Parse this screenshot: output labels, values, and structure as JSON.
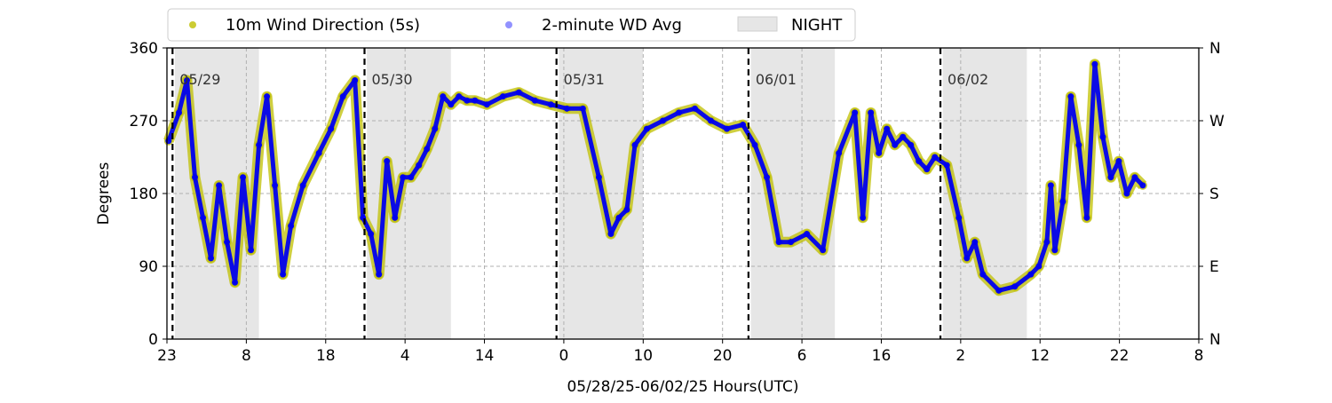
{
  "chart_data": {
    "type": "scatter",
    "xlabel": "05/28/25-06/02/25  Hours(UTC)",
    "ylabel": "Degrees",
    "ylim": [
      0,
      360
    ],
    "y_ticks": [
      0,
      90,
      180,
      270,
      360
    ],
    "y2_ticks": [
      "N",
      "E",
      "S",
      "W",
      "N"
    ],
    "xlim": [
      0,
      129
    ],
    "x_tick_labels": [
      "23",
      "8",
      "18",
      "4",
      "14",
      "0",
      "10",
      "20",
      "6",
      "16",
      "2",
      "12",
      "22",
      "8"
    ],
    "grid": true,
    "legend_position": "top-left",
    "colors": {
      "wind_5s": "#bfbf00",
      "wd_avg": "#0000ee",
      "night": "#e6e6e6",
      "day_line": "#000000",
      "grid": "#b0b0b0"
    },
    "legend": [
      {
        "label": "10m Wind Direction (5s)",
        "marker": "dot",
        "color": "#bfbf00"
      },
      {
        "label": "2-minute WD Avg",
        "marker": "dot",
        "color": "#7777ff"
      },
      {
        "label": "NIGHT",
        "marker": "box",
        "color": "#e6e6e6"
      }
    ],
    "day_boundaries": [
      {
        "x": 0.7,
        "label": "05/29"
      },
      {
        "x": 24.7,
        "label": "05/30"
      },
      {
        "x": 48.7,
        "label": "05/31"
      },
      {
        "x": 72.7,
        "label": "06/01"
      },
      {
        "x": 96.7,
        "label": "06/02"
      }
    ],
    "night_periods": [
      [
        1,
        11.5
      ],
      [
        25,
        35.5
      ],
      [
        49,
        59.5
      ],
      [
        73,
        83.5
      ],
      [
        97,
        107.5
      ]
    ],
    "series": [
      {
        "name": "10m Wind Direction (5s)",
        "x": [
          0.2,
          1.5,
          2.5,
          3.5,
          4.5,
          5.5,
          6.5,
          7.5,
          8.5,
          9.5,
          10.5,
          11.5,
          12.5,
          13.5,
          14.5,
          15.5,
          17,
          19,
          20.5,
          22,
          23.5,
          24.5,
          25.5,
          26.5,
          27.5,
          28.5,
          29.5,
          30.5,
          31.5,
          32.5,
          33.5,
          34.5,
          35.5,
          36.5,
          37.5,
          38.5,
          40,
          42,
          44,
          46,
          48,
          50,
          52,
          54,
          55.5,
          56.5,
          57.5,
          58.5,
          60,
          62,
          64,
          66,
          68,
          70,
          72,
          73.5,
          75,
          76.5,
          78,
          80,
          82,
          84,
          86,
          87,
          88,
          89,
          90,
          91,
          92,
          93,
          94,
          95,
          96,
          97.5,
          99,
          100,
          101,
          102,
          104,
          106,
          108,
          109,
          110,
          110.5,
          111,
          112,
          113,
          114,
          115,
          116,
          117,
          118,
          119,
          120,
          121,
          122
        ],
        "values": [
          245,
          280,
          320,
          200,
          150,
          100,
          190,
          120,
          70,
          200,
          110,
          240,
          300,
          190,
          80,
          140,
          190,
          230,
          260,
          300,
          320,
          150,
          130,
          80,
          220,
          150,
          200,
          200,
          215,
          235,
          260,
          300,
          290,
          300,
          295,
          295,
          290,
          300,
          305,
          295,
          290,
          285,
          285,
          200,
          130,
          150,
          160,
          240,
          260,
          270,
          280,
          285,
          270,
          260,
          265,
          240,
          200,
          120,
          120,
          130,
          110,
          230,
          280,
          150,
          280,
          230,
          260,
          240,
          250,
          240,
          220,
          210,
          225,
          215,
          150,
          100,
          120,
          80,
          60,
          65,
          80,
          90,
          120,
          190,
          110,
          170,
          300,
          240,
          150,
          340,
          250,
          200,
          220,
          180,
          200,
          190
        ]
      },
      {
        "name": "2-minute WD Avg",
        "x": [
          0.2,
          1.5,
          2.5,
          3.5,
          4.5,
          5.5,
          6.5,
          7.5,
          8.5,
          9.5,
          10.5,
          11.5,
          12.5,
          13.5,
          14.5,
          15.5,
          17,
          19,
          20.5,
          22,
          23.5,
          24.5,
          25.5,
          26.5,
          27.5,
          28.5,
          29.5,
          30.5,
          31.5,
          32.5,
          33.5,
          34.5,
          35.5,
          36.5,
          37.5,
          38.5,
          40,
          42,
          44,
          46,
          48,
          50,
          52,
          54,
          55.5,
          56.5,
          57.5,
          58.5,
          60,
          62,
          64,
          66,
          68,
          70,
          72,
          73.5,
          75,
          76.5,
          78,
          80,
          82,
          84,
          86,
          87,
          88,
          89,
          90,
          91,
          92,
          93,
          94,
          95,
          96,
          97.5,
          99,
          100,
          101,
          102,
          104,
          106,
          108,
          109,
          110,
          110.5,
          111,
          112,
          113,
          114,
          115,
          116,
          117,
          118,
          119,
          120,
          121,
          122
        ],
        "values": [
          245,
          280,
          320,
          200,
          150,
          100,
          190,
          120,
          70,
          200,
          110,
          240,
          300,
          190,
          80,
          140,
          190,
          230,
          260,
          300,
          320,
          150,
          130,
          80,
          220,
          150,
          200,
          200,
          215,
          235,
          260,
          300,
          290,
          300,
          295,
          295,
          290,
          300,
          305,
          295,
          290,
          285,
          285,
          200,
          130,
          150,
          160,
          240,
          260,
          270,
          280,
          285,
          270,
          260,
          265,
          240,
          200,
          120,
          120,
          130,
          110,
          230,
          280,
          150,
          280,
          230,
          260,
          240,
          250,
          240,
          220,
          210,
          225,
          215,
          150,
          100,
          120,
          80,
          60,
          65,
          80,
          90,
          120,
          190,
          110,
          170,
          300,
          240,
          150,
          340,
          250,
          200,
          220,
          180,
          200,
          190
        ]
      }
    ]
  }
}
